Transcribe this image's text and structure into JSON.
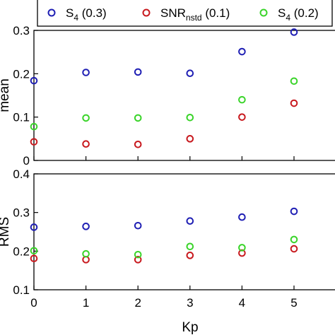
{
  "chart_data": [
    {
      "type": "scatter",
      "ylabel": "mean",
      "ylim": [
        0,
        0.3
      ],
      "xlim": [
        0,
        6
      ],
      "yticks": [
        "0",
        "0.1",
        "0.2",
        "0.3"
      ],
      "x": [
        0,
        1,
        2,
        3,
        4,
        5
      ],
      "series": [
        {
          "key": "s4_03",
          "color": "#1f1fb4",
          "values": [
            0.184,
            0.203,
            0.204,
            0.201,
            0.251,
            0.296
          ]
        },
        {
          "key": "snr_01",
          "color": "#c8191e",
          "values": [
            0.043,
            0.038,
            0.037,
            0.05,
            0.1,
            0.132
          ]
        },
        {
          "key": "s4_02",
          "color": "#3ad42a",
          "values": [
            0.078,
            0.098,
            0.098,
            0.099,
            0.14,
            0.183
          ]
        }
      ]
    },
    {
      "type": "scatter",
      "ylabel": "RMS",
      "xlabel": "Kp",
      "ylim": [
        0.1,
        0.4
      ],
      "xlim": [
        0,
        6
      ],
      "yticks": [
        "0.1",
        "0.2",
        "0.3",
        "0.4"
      ],
      "xticks": [
        "0",
        "1",
        "2",
        "3",
        "4",
        "5"
      ],
      "x": [
        0,
        1,
        2,
        3,
        4,
        5
      ],
      "series": [
        {
          "key": "s4_03",
          "color": "#1f1fb4",
          "values": [
            0.262,
            0.264,
            0.266,
            0.278,
            0.288,
            0.303
          ]
        },
        {
          "key": "snr_01",
          "color": "#c8191e",
          "values": [
            0.181,
            0.178,
            0.178,
            0.189,
            0.195,
            0.206
          ]
        },
        {
          "key": "s4_02",
          "color": "#3ad42a",
          "values": [
            0.201,
            0.193,
            0.191,
            0.212,
            0.209,
            0.23
          ]
        }
      ]
    }
  ],
  "legend": {
    "placement": "top",
    "items": [
      {
        "main": "S",
        "sub": "4",
        "rest": " (0.3)",
        "color": "#1f1fb4"
      },
      {
        "main": "SNR",
        "sub": "nstd",
        "rest": " (0.1)",
        "color": "#c8191e"
      },
      {
        "main": "S",
        "sub": "4",
        "rest": " (0.2)",
        "color": "#3ad42a"
      }
    ]
  }
}
